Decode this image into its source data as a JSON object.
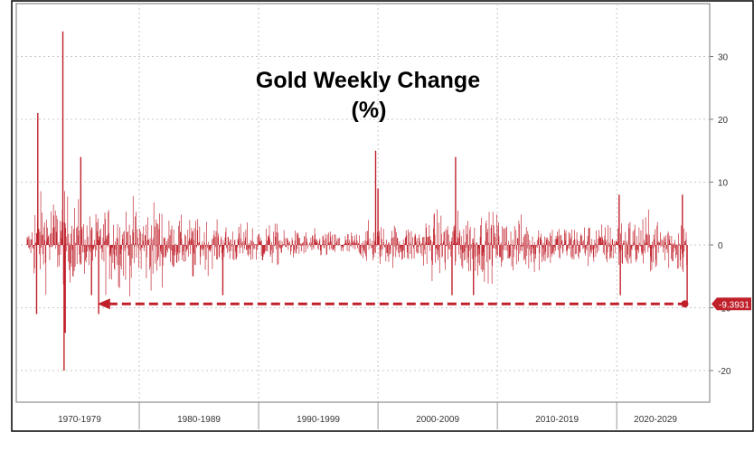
{
  "chart_data": {
    "type": "bar",
    "title_line1": "Gold Weekly Change",
    "title_line2": "(%)",
    "xlabel": "",
    "ylabel": "",
    "ylim": [
      -25,
      38
    ],
    "yticks": [
      30,
      20,
      10,
      0,
      -10,
      -20
    ],
    "ytick_labels": [
      "30",
      "20",
      "10",
      "0",
      "-10",
      "-20"
    ],
    "decades": [
      "1970-1979",
      "1980-1989",
      "1990-1999",
      "2000-2009",
      "2010-2019",
      "2020-2029"
    ],
    "x_range": [
      1970.0,
      2026.5
    ],
    "grid": true,
    "series_color": "#c0202a",
    "annotation_color": "#c0202a",
    "last_value": -9.3931,
    "last_value_label": "-9.3931",
    "reference_arrow": {
      "from_x": 1976.5,
      "to_x": 2025.7,
      "y": -9.3931
    },
    "highlights": [
      {
        "x": 1971.5,
        "value": 21
      },
      {
        "x": 1971.4,
        "value": -11
      },
      {
        "x": 1973.6,
        "value": 34
      },
      {
        "x": 1973.7,
        "value": -20
      },
      {
        "x": 1973.8,
        "value": -14
      },
      {
        "x": 1975.1,
        "value": 14
      },
      {
        "x": 1976.6,
        "value": -11
      },
      {
        "x": 1976.0,
        "value": -8
      },
      {
        "x": 1984.5,
        "value": -5
      },
      {
        "x": 1987.0,
        "value": -8
      },
      {
        "x": 1999.8,
        "value": 15
      },
      {
        "x": 2000.0,
        "value": 9
      },
      {
        "x": 2006.5,
        "value": 14
      },
      {
        "x": 2006.2,
        "value": -8
      },
      {
        "x": 2008.0,
        "value": -8
      },
      {
        "x": 2020.2,
        "value": 8
      },
      {
        "x": 2020.3,
        "value": -8
      },
      {
        "x": 2025.5,
        "value": 8
      },
      {
        "x": 2025.9,
        "value": -9.3931
      }
    ]
  }
}
